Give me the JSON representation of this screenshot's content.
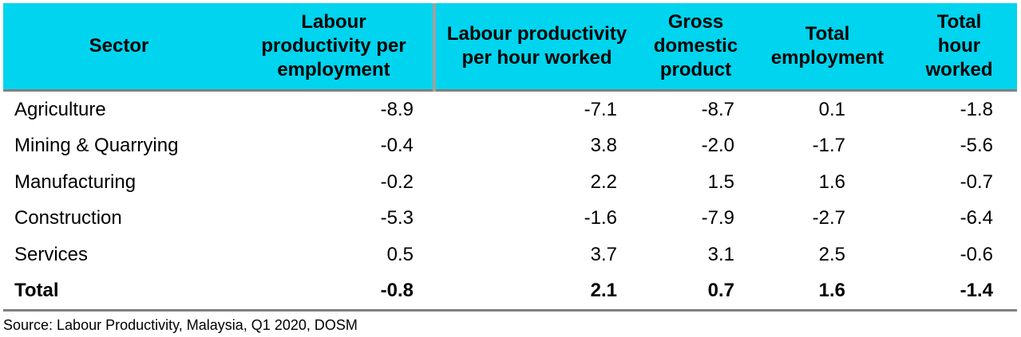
{
  "table": {
    "headers": [
      "Sector",
      "Labour productivity per employment",
      "Labour productivity per hour worked",
      "Gross domestic product",
      "Total employment",
      "Total hour worked"
    ],
    "rows": [
      [
        "Agriculture",
        "-8.9",
        "-7.1",
        "-8.7",
        "0.1",
        "-1.8"
      ],
      [
        "Mining & Quarrying",
        "-0.4",
        "3.8",
        "-2.0",
        "-1.7",
        "-5.6"
      ],
      [
        "Manufacturing",
        "-0.2",
        "2.2",
        "1.5",
        "1.6",
        "-0.7"
      ],
      [
        "Construction",
        "-5.3",
        "-1.6",
        "-7.9",
        "-2.7",
        "-6.4"
      ],
      [
        "Services",
        "0.5",
        "3.7",
        "3.1",
        "2.5",
        "-0.6"
      ],
      [
        "Total",
        "-0.8",
        "2.1",
        "0.7",
        "1.6",
        "-1.4"
      ]
    ]
  },
  "source": "Source: Labour Productivity, Malaysia, Q1 2020, DOSM",
  "colors": {
    "header_background": "#00d4ee",
    "rule": "#808080"
  }
}
